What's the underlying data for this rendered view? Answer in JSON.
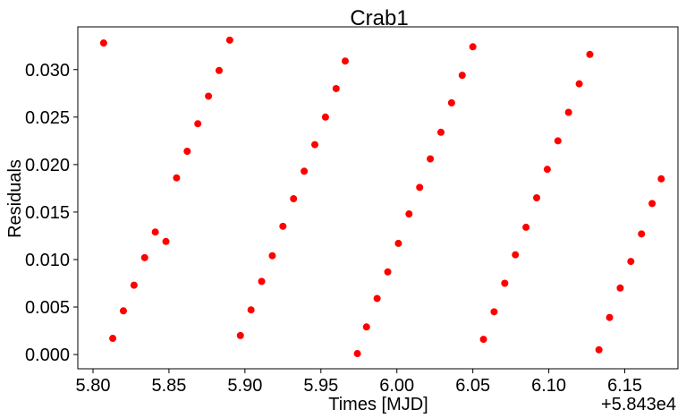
{
  "chart_data": {
    "type": "scatter",
    "title": "Crab1",
    "xlabel": "Times [MJD]",
    "ylabel": "Residuals",
    "x_offset_label": "+5.843e4",
    "x_offset": 58430,
    "xlim": [
      5.79,
      6.185
    ],
    "ylim": [
      -0.0015,
      0.0345
    ],
    "xticks": [
      5.8,
      5.85,
      5.9,
      5.95,
      6.0,
      6.05,
      6.1,
      6.15
    ],
    "xtick_labels": [
      "5.80",
      "5.85",
      "5.90",
      "5.95",
      "6.00",
      "6.05",
      "6.10",
      "6.15"
    ],
    "yticks": [
      0.0,
      0.005,
      0.01,
      0.015,
      0.02,
      0.025,
      0.03
    ],
    "ytick_labels": [
      "0.000",
      "0.005",
      "0.010",
      "0.015",
      "0.020",
      "0.025",
      "0.030"
    ],
    "grid": false,
    "marker_color": "#ff0000",
    "series": [
      {
        "x": [
          5.807,
          5.813,
          5.82,
          5.827,
          5.834,
          5.841,
          5.848,
          5.855,
          5.862,
          5.869,
          5.876,
          5.883,
          5.89,
          5.897,
          5.904,
          5.911,
          5.918,
          5.925,
          5.932,
          5.939,
          5.946,
          5.953,
          5.96,
          5.966,
          5.974,
          5.98,
          5.987,
          5.994,
          6.001,
          6.008,
          6.015,
          6.022,
          6.029,
          6.036,
          6.043,
          6.05,
          6.057,
          6.064,
          6.071,
          6.078,
          6.085,
          6.092,
          6.099,
          6.106,
          6.113,
          6.12,
          6.127,
          6.133,
          6.14,
          6.147,
          6.154,
          6.161,
          6.168,
          6.174
        ],
        "y": [
          0.0328,
          0.0017,
          0.0046,
          0.0073,
          0.0102,
          0.0129,
          0.0119,
          0.0186,
          0.0214,
          0.0243,
          0.0272,
          0.0299,
          0.0331,
          0.002,
          0.0047,
          0.0077,
          0.0104,
          0.0135,
          0.0164,
          0.0193,
          0.0221,
          0.025,
          0.028,
          0.0309,
          0.0001,
          0.0029,
          0.0059,
          0.0087,
          0.0117,
          0.0148,
          0.0176,
          0.0206,
          0.0234,
          0.0265,
          0.0294,
          0.0324,
          0.0016,
          0.0045,
          0.0075,
          0.0105,
          0.0134,
          0.0165,
          0.0195,
          0.0225,
          0.0255,
          0.0285,
          0.0316,
          0.0005,
          0.0039,
          0.007,
          0.0098,
          0.0127,
          0.0159,
          0.0185
        ]
      }
    ]
  }
}
